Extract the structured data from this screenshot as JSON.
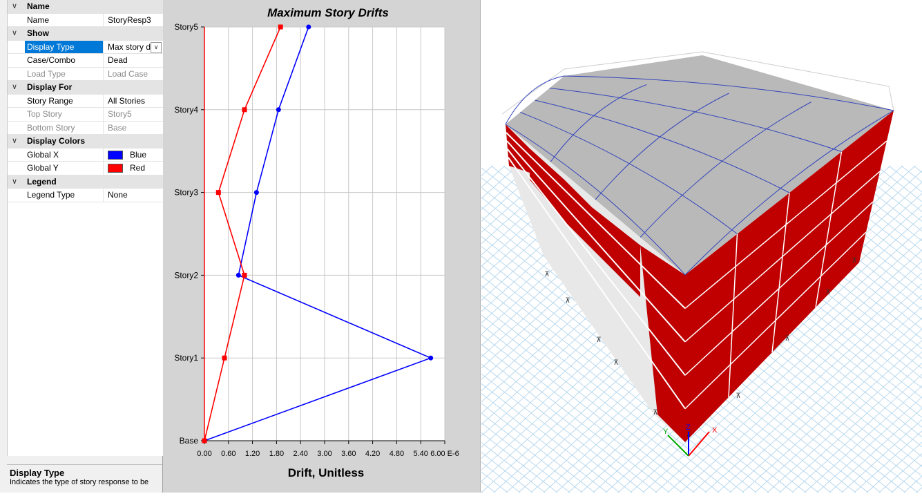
{
  "properties": {
    "sections": [
      {
        "title": "Name",
        "rows": [
          {
            "name": "Name",
            "value": "StoryResp3"
          }
        ]
      },
      {
        "title": "Show",
        "rows": [
          {
            "name": "Display Type",
            "value": "Max story drift",
            "selected": true,
            "dropdown": true
          },
          {
            "name": "Case/Combo",
            "value": "Dead"
          },
          {
            "name": "Load Type",
            "value": "Load Case",
            "disabled": true
          }
        ]
      },
      {
        "title": "Display For",
        "rows": [
          {
            "name": "Story Range",
            "value": "All Stories"
          },
          {
            "name": "Top Story",
            "value": "Story5",
            "disabled": true
          },
          {
            "name": "Bottom Story",
            "value": "Base",
            "disabled": true
          }
        ]
      },
      {
        "title": "Display Colors",
        "rows": [
          {
            "name": "Global X",
            "value": "Blue",
            "swatch": "#0000ff"
          },
          {
            "name": "Global Y",
            "value": "Red",
            "swatch": "#ff0000"
          }
        ]
      },
      {
        "title": "Legend",
        "rows": [
          {
            "name": "Legend Type",
            "value": "None"
          }
        ]
      }
    ]
  },
  "description": {
    "title": "Display Type",
    "text": "Indicates the type of story response to be"
  },
  "chart_data": {
    "type": "line",
    "title": "Maximum Story Drifts",
    "xlabel": "Drift, Unitless",
    "ylabel": "",
    "xlim": [
      0,
      6.0
    ],
    "x_tick_labels": [
      "0.00",
      "0.60",
      "1.20",
      "1.80",
      "2.40",
      "3.00",
      "3.60",
      "4.20",
      "4.80",
      "5.40",
      "6.00 E-6"
    ],
    "categories": [
      "Base",
      "Story1",
      "Story2",
      "Story3",
      "Story4",
      "Story5"
    ],
    "grid": true,
    "series": [
      {
        "color": "#0000ff",
        "marker": "circle",
        "values": [
          0,
          5.65,
          0.85,
          1.3,
          1.85,
          2.6
        ]
      },
      {
        "color": "#ff0000",
        "marker": "square",
        "values": [
          0,
          0.5,
          1.0,
          0.35,
          1.0,
          1.9
        ]
      }
    ]
  },
  "view3d": {
    "axis_labels": {
      "x": "X",
      "y": "Y",
      "z": "Z"
    },
    "colors": {
      "wall": "#c00000",
      "slab": "#b9b9b9",
      "grid": "#b8d8ee",
      "deformed": "#3344bb"
    }
  }
}
